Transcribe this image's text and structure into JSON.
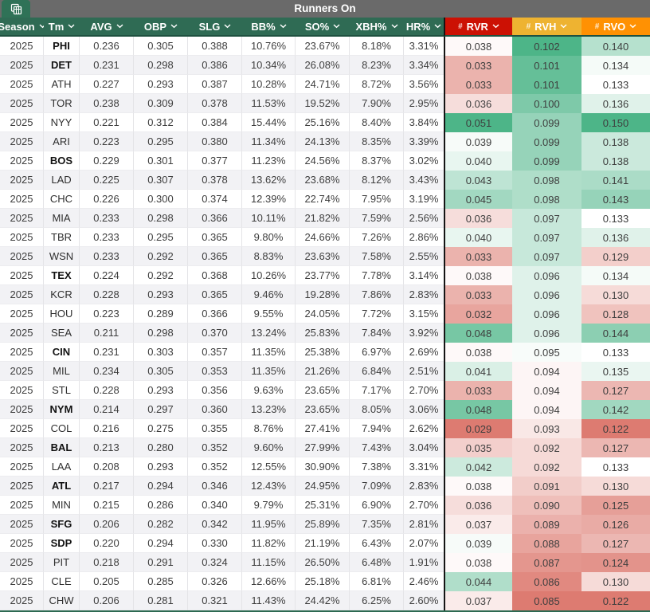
{
  "window": {
    "title": "Runners On",
    "tab_icon": "table-icon"
  },
  "colors": {
    "titlebar_gray": "#6a6a6a",
    "tab_green": "#2f7257",
    "header_green": "#2f6b54",
    "rvr_header_red": "#cc1104",
    "rvh_header_amber": "#eeb331",
    "rvo_header_orange": "#ff9103",
    "heat_green": "#4db588",
    "heat_red": "#dd7b71",
    "heat_white": "#ffffff",
    "row_stripe": "#f2f2f5",
    "black_separator": "#151515",
    "bottom_border_green": "#2d6a52"
  },
  "heatmap": {
    "rvr": {
      "min": 0.029,
      "mid": 0.0384,
      "max": 0.051
    },
    "rvh": {
      "min": 0.085,
      "mid": 0.0947,
      "max": 0.102
    },
    "rvo": {
      "min": 0.122,
      "mid": 0.133,
      "max": 0.15
    }
  },
  "table": {
    "hash_prefix": "#",
    "sort_icon": "chevron-down-icon",
    "columns": [
      {
        "key": "season",
        "label": "Season"
      },
      {
        "key": "tm",
        "label": "Tm"
      },
      {
        "key": "avg",
        "label": "AVG"
      },
      {
        "key": "obp",
        "label": "OBP"
      },
      {
        "key": "slg",
        "label": "SLG"
      },
      {
        "key": "bb",
        "label": "BB%"
      },
      {
        "key": "so",
        "label": "SO%"
      },
      {
        "key": "xbh",
        "label": "XBH%"
      },
      {
        "key": "hr",
        "label": "HR%",
        "last_plain": true
      },
      {
        "key": "rvr",
        "label": "RVR",
        "hash": true,
        "heat": true,
        "sep": true,
        "header_bg": "#cc1104"
      },
      {
        "key": "rvh",
        "label": "RVH",
        "hash": true,
        "heat": true,
        "header_bg": "#eeb331"
      },
      {
        "key": "rvo",
        "label": "RVO",
        "hash": true,
        "heat": true,
        "header_bg": "#ff9103"
      }
    ],
    "rows": [
      {
        "season": "2025",
        "tm": "PHI",
        "bold": true,
        "avg": "0.236",
        "obp": "0.305",
        "slg": "0.388",
        "bb": "10.76%",
        "so": "23.67%",
        "xbh": "8.18%",
        "hr": "3.31%",
        "rvr": "0.038",
        "rvh": "0.102",
        "rvo": "0.140"
      },
      {
        "season": "2025",
        "tm": "DET",
        "bold": true,
        "avg": "0.231",
        "obp": "0.298",
        "slg": "0.386",
        "bb": "10.34%",
        "so": "26.08%",
        "xbh": "8.23%",
        "hr": "3.34%",
        "rvr": "0.033",
        "rvh": "0.101",
        "rvo": "0.134"
      },
      {
        "season": "2025",
        "tm": "ATH",
        "bold": false,
        "avg": "0.227",
        "obp": "0.293",
        "slg": "0.387",
        "bb": "10.28%",
        "so": "24.71%",
        "xbh": "8.72%",
        "hr": "3.56%",
        "rvr": "0.033",
        "rvh": "0.101",
        "rvo": "0.133"
      },
      {
        "season": "2025",
        "tm": "TOR",
        "bold": false,
        "avg": "0.238",
        "obp": "0.309",
        "slg": "0.378",
        "bb": "11.53%",
        "so": "19.52%",
        "xbh": "7.90%",
        "hr": "2.95%",
        "rvr": "0.036",
        "rvh": "0.100",
        "rvo": "0.136"
      },
      {
        "season": "2025",
        "tm": "NYY",
        "bold": false,
        "avg": "0.221",
        "obp": "0.312",
        "slg": "0.384",
        "bb": "15.44%",
        "so": "25.16%",
        "xbh": "8.40%",
        "hr": "3.84%",
        "rvr": "0.051",
        "rvh": "0.099",
        "rvo": "0.150"
      },
      {
        "season": "2025",
        "tm": "ARI",
        "bold": false,
        "avg": "0.223",
        "obp": "0.295",
        "slg": "0.380",
        "bb": "11.34%",
        "so": "24.13%",
        "xbh": "8.35%",
        "hr": "3.39%",
        "rvr": "0.039",
        "rvh": "0.099",
        "rvo": "0.138"
      },
      {
        "season": "2025",
        "tm": "BOS",
        "bold": true,
        "avg": "0.229",
        "obp": "0.301",
        "slg": "0.377",
        "bb": "11.23%",
        "so": "24.56%",
        "xbh": "8.37%",
        "hr": "3.02%",
        "rvr": "0.040",
        "rvh": "0.099",
        "rvo": "0.138"
      },
      {
        "season": "2025",
        "tm": "LAD",
        "bold": false,
        "avg": "0.225",
        "obp": "0.307",
        "slg": "0.378",
        "bb": "13.62%",
        "so": "23.68%",
        "xbh": "8.12%",
        "hr": "3.43%",
        "rvr": "0.043",
        "rvh": "0.098",
        "rvo": "0.141"
      },
      {
        "season": "2025",
        "tm": "CHC",
        "bold": false,
        "avg": "0.226",
        "obp": "0.300",
        "slg": "0.374",
        "bb": "12.39%",
        "so": "22.74%",
        "xbh": "7.95%",
        "hr": "3.19%",
        "rvr": "0.045",
        "rvh": "0.098",
        "rvo": "0.143"
      },
      {
        "season": "2025",
        "tm": "MIA",
        "bold": false,
        "avg": "0.233",
        "obp": "0.298",
        "slg": "0.366",
        "bb": "10.11%",
        "so": "21.82%",
        "xbh": "7.59%",
        "hr": "2.56%",
        "rvr": "0.036",
        "rvh": "0.097",
        "rvo": "0.133"
      },
      {
        "season": "2025",
        "tm": "TBR",
        "bold": false,
        "avg": "0.233",
        "obp": "0.295",
        "slg": "0.365",
        "bb": "9.80%",
        "so": "24.66%",
        "xbh": "7.26%",
        "hr": "2.86%",
        "rvr": "0.040",
        "rvh": "0.097",
        "rvo": "0.136"
      },
      {
        "season": "2025",
        "tm": "WSN",
        "bold": false,
        "avg": "0.233",
        "obp": "0.292",
        "slg": "0.365",
        "bb": "8.83%",
        "so": "23.63%",
        "xbh": "7.58%",
        "hr": "2.55%",
        "rvr": "0.033",
        "rvh": "0.097",
        "rvo": "0.129"
      },
      {
        "season": "2025",
        "tm": "TEX",
        "bold": true,
        "avg": "0.224",
        "obp": "0.292",
        "slg": "0.368",
        "bb": "10.26%",
        "so": "23.77%",
        "xbh": "7.78%",
        "hr": "3.14%",
        "rvr": "0.038",
        "rvh": "0.096",
        "rvo": "0.134"
      },
      {
        "season": "2025",
        "tm": "KCR",
        "bold": false,
        "avg": "0.228",
        "obp": "0.293",
        "slg": "0.365",
        "bb": "9.46%",
        "so": "19.28%",
        "xbh": "7.86%",
        "hr": "2.83%",
        "rvr": "0.033",
        "rvh": "0.096",
        "rvo": "0.130"
      },
      {
        "season": "2025",
        "tm": "HOU",
        "bold": false,
        "avg": "0.223",
        "obp": "0.289",
        "slg": "0.366",
        "bb": "9.55%",
        "so": "24.05%",
        "xbh": "7.72%",
        "hr": "3.15%",
        "rvr": "0.032",
        "rvh": "0.096",
        "rvo": "0.128"
      },
      {
        "season": "2025",
        "tm": "SEA",
        "bold": false,
        "avg": "0.211",
        "obp": "0.298",
        "slg": "0.370",
        "bb": "13.24%",
        "so": "25.83%",
        "xbh": "7.84%",
        "hr": "3.92%",
        "rvr": "0.048",
        "rvh": "0.096",
        "rvo": "0.144"
      },
      {
        "season": "2025",
        "tm": "CIN",
        "bold": true,
        "avg": "0.231",
        "obp": "0.303",
        "slg": "0.357",
        "bb": "11.35%",
        "so": "25.38%",
        "xbh": "6.97%",
        "hr": "2.69%",
        "rvr": "0.038",
        "rvh": "0.095",
        "rvo": "0.133"
      },
      {
        "season": "2025",
        "tm": "MIL",
        "bold": false,
        "avg": "0.234",
        "obp": "0.305",
        "slg": "0.353",
        "bb": "11.35%",
        "so": "21.26%",
        "xbh": "6.84%",
        "hr": "2.51%",
        "rvr": "0.041",
        "rvh": "0.094",
        "rvo": "0.135"
      },
      {
        "season": "2025",
        "tm": "STL",
        "bold": false,
        "avg": "0.228",
        "obp": "0.293",
        "slg": "0.356",
        "bb": "9.63%",
        "so": "23.65%",
        "xbh": "7.17%",
        "hr": "2.70%",
        "rvr": "0.033",
        "rvh": "0.094",
        "rvo": "0.127"
      },
      {
        "season": "2025",
        "tm": "NYM",
        "bold": true,
        "avg": "0.214",
        "obp": "0.297",
        "slg": "0.360",
        "bb": "13.23%",
        "so": "23.65%",
        "xbh": "8.05%",
        "hr": "3.06%",
        "rvr": "0.048",
        "rvh": "0.094",
        "rvo": "0.142"
      },
      {
        "season": "2025",
        "tm": "COL",
        "bold": false,
        "avg": "0.216",
        "obp": "0.275",
        "slg": "0.355",
        "bb": "8.76%",
        "so": "27.41%",
        "xbh": "7.94%",
        "hr": "2.62%",
        "rvr": "0.029",
        "rvh": "0.093",
        "rvo": "0.122"
      },
      {
        "season": "2025",
        "tm": "BAL",
        "bold": true,
        "avg": "0.213",
        "obp": "0.280",
        "slg": "0.352",
        "bb": "9.60%",
        "so": "27.99%",
        "xbh": "7.43%",
        "hr": "3.04%",
        "rvr": "0.035",
        "rvh": "0.092",
        "rvo": "0.127"
      },
      {
        "season": "2025",
        "tm": "LAA",
        "bold": false,
        "avg": "0.208",
        "obp": "0.293",
        "slg": "0.352",
        "bb": "12.55%",
        "so": "30.90%",
        "xbh": "7.38%",
        "hr": "3.31%",
        "rvr": "0.042",
        "rvh": "0.092",
        "rvo": "0.133"
      },
      {
        "season": "2025",
        "tm": "ATL",
        "bold": true,
        "avg": "0.217",
        "obp": "0.294",
        "slg": "0.346",
        "bb": "12.43%",
        "so": "24.95%",
        "xbh": "7.09%",
        "hr": "2.83%",
        "rvr": "0.038",
        "rvh": "0.091",
        "rvo": "0.130"
      },
      {
        "season": "2025",
        "tm": "MIN",
        "bold": false,
        "avg": "0.215",
        "obp": "0.286",
        "slg": "0.340",
        "bb": "9.79%",
        "so": "25.31%",
        "xbh": "6.90%",
        "hr": "2.70%",
        "rvr": "0.036",
        "rvh": "0.090",
        "rvo": "0.125"
      },
      {
        "season": "2025",
        "tm": "SFG",
        "bold": true,
        "avg": "0.206",
        "obp": "0.282",
        "slg": "0.342",
        "bb": "11.95%",
        "so": "25.89%",
        "xbh": "7.35%",
        "hr": "2.81%",
        "rvr": "0.037",
        "rvh": "0.089",
        "rvo": "0.126"
      },
      {
        "season": "2025",
        "tm": "SDP",
        "bold": true,
        "avg": "0.220",
        "obp": "0.294",
        "slg": "0.330",
        "bb": "11.82%",
        "so": "21.19%",
        "xbh": "6.43%",
        "hr": "2.07%",
        "rvr": "0.039",
        "rvh": "0.088",
        "rvo": "0.127"
      },
      {
        "season": "2025",
        "tm": "PIT",
        "bold": false,
        "avg": "0.218",
        "obp": "0.291",
        "slg": "0.324",
        "bb": "11.15%",
        "so": "26.50%",
        "xbh": "6.48%",
        "hr": "1.91%",
        "rvr": "0.038",
        "rvh": "0.087",
        "rvo": "0.124"
      },
      {
        "season": "2025",
        "tm": "CLE",
        "bold": false,
        "avg": "0.205",
        "obp": "0.285",
        "slg": "0.326",
        "bb": "12.66%",
        "so": "25.18%",
        "xbh": "6.81%",
        "hr": "2.46%",
        "rvr": "0.044",
        "rvh": "0.086",
        "rvo": "0.130"
      },
      {
        "season": "2025",
        "tm": "CHW",
        "bold": false,
        "avg": "0.206",
        "obp": "0.281",
        "slg": "0.321",
        "bb": "11.43%",
        "so": "24.42%",
        "xbh": "6.25%",
        "hr": "2.60%",
        "rvr": "0.037",
        "rvh": "0.085",
        "rvo": "0.122"
      }
    ]
  }
}
